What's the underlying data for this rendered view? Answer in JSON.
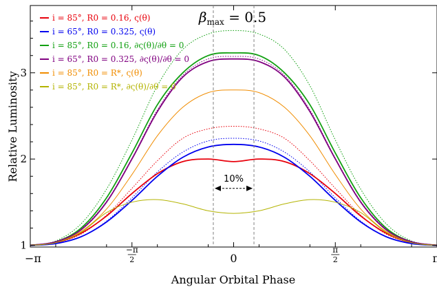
{
  "chart_data": {
    "type": "line",
    "title": "βmax = 0.5",
    "title_parts": {
      "symbol": "β",
      "subscript": "max",
      "rest": " = 0.5"
    },
    "xlabel": "Angular Orbital Phase",
    "ylabel": "Relative Luminosity",
    "xlim": [
      -3.14159,
      3.14159
    ],
    "ylim": [
      0.98,
      3.78
    ],
    "x_ticks": [
      {
        "value": -3.14159,
        "label": "−π"
      },
      {
        "value": -1.5708,
        "label": "−π/2"
      },
      {
        "value": 0,
        "label": "0"
      },
      {
        "value": 1.5708,
        "label": "π/2"
      },
      {
        "value": 3.14159,
        "label": "π"
      }
    ],
    "y_ticks": [
      {
        "value": 1,
        "label": "1"
      },
      {
        "value": 2,
        "label": "2"
      },
      {
        "value": 3,
        "label": "3"
      }
    ],
    "grid": false,
    "legend_placement": "top-left",
    "annotation": {
      "text": "10%",
      "x_range": [
        -0.314,
        0.314
      ],
      "y": 1.66,
      "vertical_lines_x": [
        -0.314,
        0.314
      ]
    },
    "x": [
      -3.1416,
      -2.7489,
      -2.3562,
      -1.9635,
      -1.5708,
      -1.1781,
      -0.7854,
      -0.3927,
      0,
      0.3927,
      0.7854,
      1.1781,
      1.5708,
      1.9635,
      2.3562,
      2.7489,
      3.1416
    ],
    "series": [
      {
        "name": "i = 85°, R0 = 0.16, ς(θ)",
        "color": "#e8000b",
        "style": "solid",
        "width": 1.8,
        "values": [
          1.0,
          1.03,
          1.14,
          1.34,
          1.6,
          1.83,
          1.97,
          2.0,
          1.97,
          2.0,
          1.97,
          1.83,
          1.6,
          1.34,
          1.14,
          1.03,
          1.0
        ]
      },
      {
        "name": "i = 65°, R0 = 0.325, ς(θ)",
        "color": "#0000ee",
        "style": "solid",
        "width": 1.8,
        "values": [
          1.0,
          1.02,
          1.1,
          1.27,
          1.52,
          1.8,
          2.02,
          2.14,
          2.17,
          2.14,
          2.02,
          1.8,
          1.52,
          1.27,
          1.1,
          1.02,
          1.0
        ]
      },
      {
        "name": "i = 85°, R0 = 0.16, ∂ς(θ)/∂θ = 0",
        "color": "#12a012",
        "style": "solid",
        "width": 1.8,
        "values": [
          1.0,
          1.04,
          1.2,
          1.55,
          2.07,
          2.63,
          3.0,
          3.2,
          3.23,
          3.2,
          3.0,
          2.63,
          2.07,
          1.55,
          1.2,
          1.04,
          1.0
        ]
      },
      {
        "name": "i = 65°, R0 = 0.325, ∂ς(θ)/∂θ = 0",
        "color": "#800080",
        "style": "solid",
        "width": 1.8,
        "values": [
          1.0,
          1.04,
          1.18,
          1.5,
          2.0,
          2.55,
          2.95,
          3.13,
          3.16,
          3.13,
          2.95,
          2.55,
          2.0,
          1.5,
          1.18,
          1.04,
          1.0
        ]
      },
      {
        "name": "i = 85°, R0 = R*, ς(θ)",
        "color": "#f08c00",
        "style": "solid",
        "width": 1.0,
        "values": [
          1.0,
          1.03,
          1.16,
          1.42,
          1.82,
          2.27,
          2.6,
          2.77,
          2.8,
          2.77,
          2.6,
          2.27,
          1.82,
          1.42,
          1.16,
          1.03,
          1.0
        ]
      },
      {
        "name": "i = 85°, R0 = R*, ∂ς(θ)/∂θ = 0",
        "color": "#b3b300",
        "style": "solid",
        "width": 1.0,
        "values": [
          1.0,
          1.03,
          1.15,
          1.38,
          1.5,
          1.53,
          1.48,
          1.4,
          1.37,
          1.4,
          1.48,
          1.53,
          1.5,
          1.38,
          1.15,
          1.03,
          1.0
        ]
      },
      {
        "color": "#12a012",
        "style": "dotted",
        "width": 1.0,
        "values": [
          1.0,
          1.05,
          1.25,
          1.65,
          2.22,
          2.85,
          3.27,
          3.45,
          3.49,
          3.45,
          3.27,
          2.85,
          2.22,
          1.65,
          1.25,
          1.05,
          1.0
        ]
      },
      {
        "color": "#800080",
        "style": "dotted",
        "width": 1.0,
        "values": [
          1.0,
          1.04,
          1.19,
          1.51,
          2.01,
          2.57,
          2.97,
          3.16,
          3.19,
          3.16,
          2.97,
          2.57,
          2.01,
          1.51,
          1.19,
          1.04,
          1.0
        ]
      },
      {
        "color": "#e8000b",
        "style": "dotted",
        "width": 1.0,
        "values": [
          1.0,
          1.03,
          1.13,
          1.35,
          1.66,
          1.98,
          2.24,
          2.35,
          2.38,
          2.35,
          2.24,
          1.98,
          1.66,
          1.35,
          1.13,
          1.03,
          1.0
        ]
      },
      {
        "color": "#0000ee",
        "style": "dotted",
        "width": 1.0,
        "values": [
          1.0,
          1.02,
          1.1,
          1.28,
          1.55,
          1.85,
          2.08,
          2.21,
          2.24,
          2.21,
          2.08,
          1.85,
          1.55,
          1.28,
          1.1,
          1.02,
          1.0
        ]
      }
    ]
  }
}
